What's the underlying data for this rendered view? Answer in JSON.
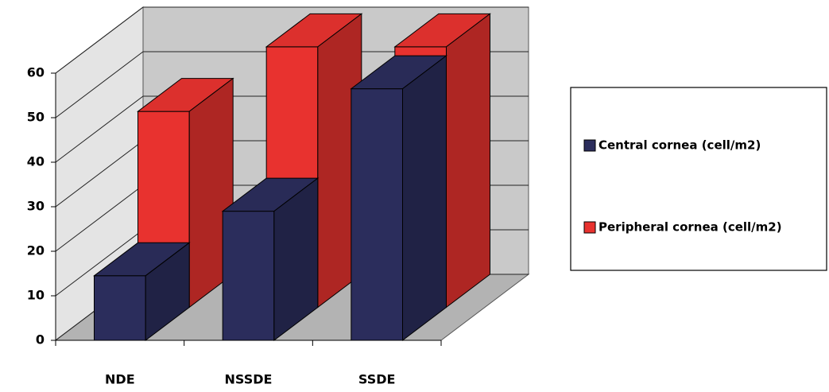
{
  "chart_data": {
    "type": "bar3d",
    "categories": [
      "NDE",
      "NSSDE",
      "SSDE"
    ],
    "series": [
      {
        "name": "Central cornea (cell/m2)",
        "color": "#2b2d5c",
        "values": [
          14.5,
          29,
          56.5
        ]
      },
      {
        "name": "Peripheral cornea (cell/m2)",
        "color": "#e8322f",
        "values": [
          44,
          58.5,
          58.5
        ]
      }
    ],
    "ylim": [
      0,
      60
    ],
    "yticks": [
      0,
      10,
      20,
      30,
      40,
      50,
      60
    ],
    "grid": true,
    "legend": "right"
  }
}
